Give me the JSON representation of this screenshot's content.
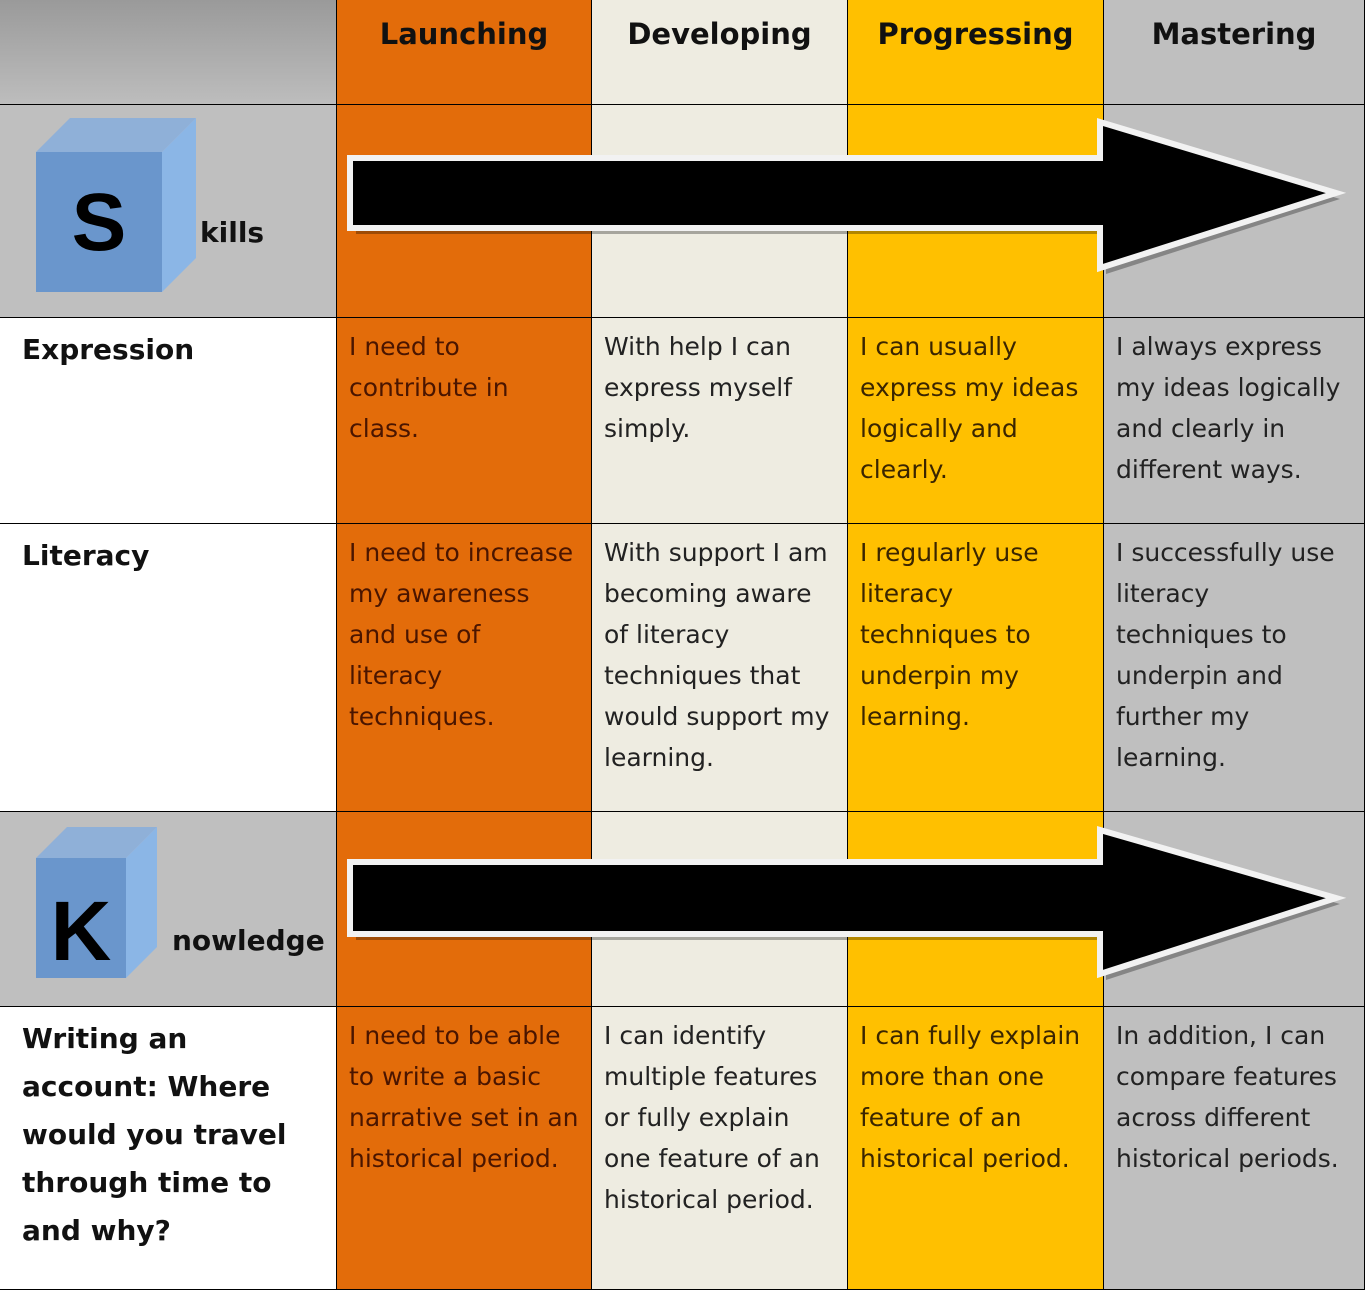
{
  "table": {
    "header": [
      "Launching",
      "Developing",
      "Progressing",
      "Mastering"
    ],
    "skills": {
      "letter": "S",
      "label": "kills"
    },
    "skill_rows": [
      {
        "label": "Expression",
        "cells": [
          "I need to contribute in class.",
          "With help I can express myself simply.",
          "I can usually express my ideas logically and clearly.",
          "I always express my ideas logically and clearly in different ways."
        ]
      },
      {
        "label": "Literacy",
        "cells": [
          "I need to increase my awareness and use of literacy techniques.",
          "With support I am becoming aware of literacy techniques that would support my learning.",
          "I regularly use literacy techniques to underpin my learning.",
          "I successfully use literacy techniques to underpin and further my learning."
        ]
      }
    ],
    "knowledge": {
      "letter": "K",
      "label": "nowledge"
    },
    "knowledge_rows": [
      {
        "label": "Writing an account: Where would you travel through time to and why?",
        "cells": [
          "I need to be able to write a basic narrative set in an historical period.",
          "I can identify multiple features or fully explain one feature of an historical period.",
          "I can fully explain more than one feature of an historical period.",
          "In addition, I can compare features across different historical periods."
        ]
      }
    ]
  }
}
